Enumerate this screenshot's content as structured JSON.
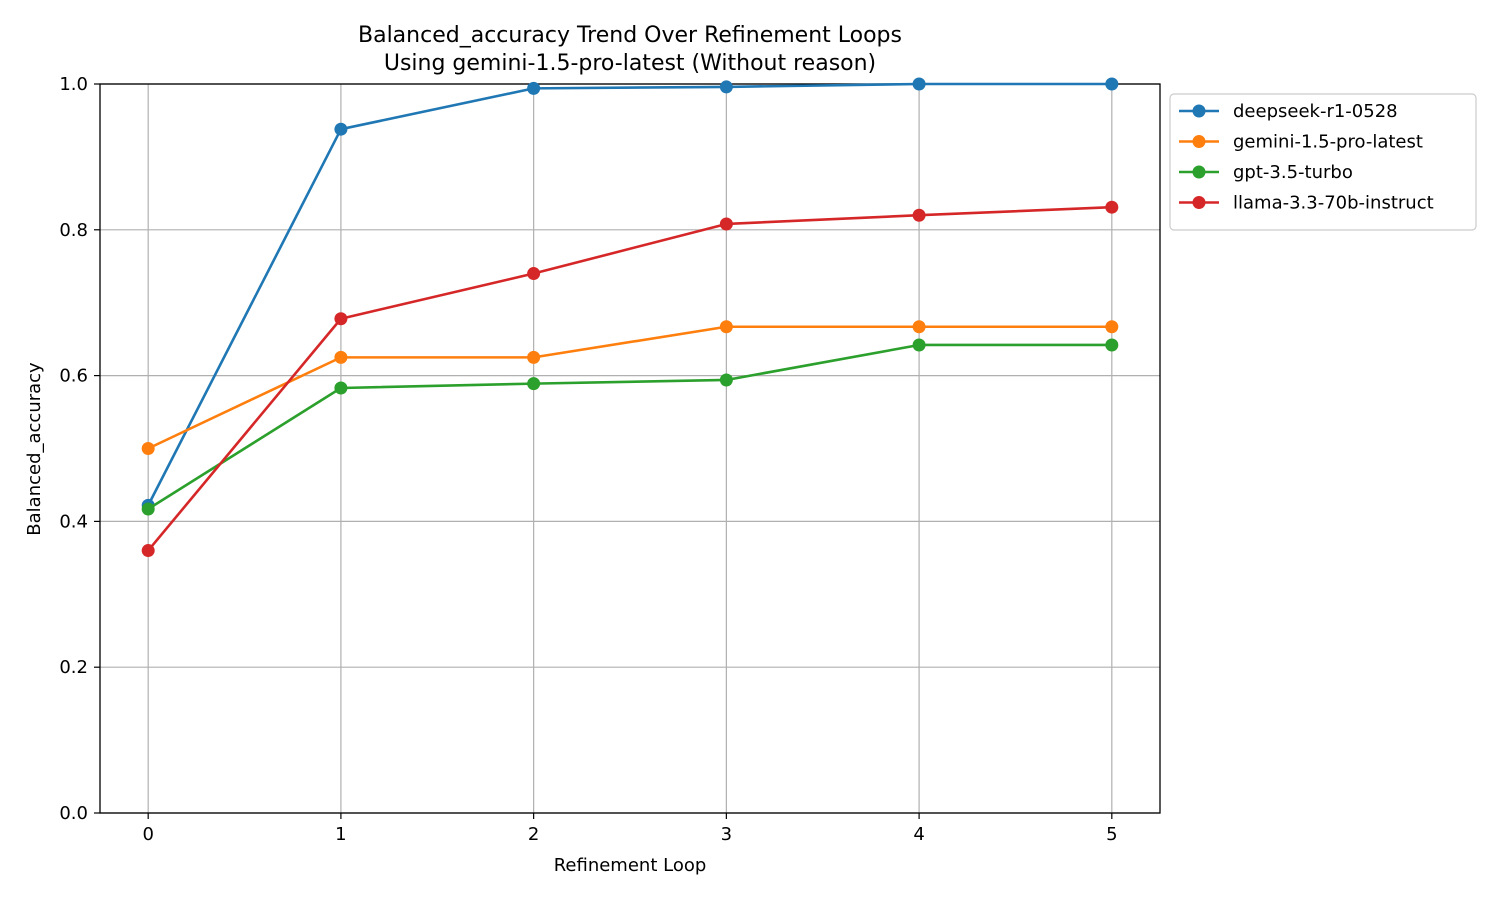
{
  "chart_data": {
    "type": "line",
    "title": "Balanced_accuracy Trend Over Refinement Loops",
    "subtitle": "Using gemini-1.5-pro-latest (Without reason)",
    "xlabel": "Refinement Loop",
    "ylabel": "Balanced_accuracy",
    "x": [
      0,
      1,
      2,
      3,
      4,
      5
    ],
    "x_ticks": [
      "0",
      "1",
      "2",
      "3",
      "4",
      "5"
    ],
    "y_ticks": [
      "0.0",
      "0.2",
      "0.4",
      "0.6",
      "0.8",
      "1.0"
    ],
    "xlim": [
      -0.25,
      5.25
    ],
    "ylim": [
      0,
      1
    ],
    "grid": true,
    "legend_position": "outside-top-right",
    "series": [
      {
        "name": "deepseek-r1-0528",
        "color": "#1f77b4",
        "values": [
          0.422,
          0.938,
          0.994,
          0.996,
          1.0,
          1.0
        ]
      },
      {
        "name": "gemini-1.5-pro-latest",
        "color": "#ff7f0e",
        "values": [
          0.5,
          0.625,
          0.625,
          0.667,
          0.667,
          0.667
        ]
      },
      {
        "name": "gpt-3.5-turbo",
        "color": "#2ca02c",
        "values": [
          0.417,
          0.583,
          0.589,
          0.594,
          0.642,
          0.642
        ]
      },
      {
        "name": "llama-3.3-70b-instruct",
        "color": "#d62728",
        "values": [
          0.36,
          0.678,
          0.74,
          0.808,
          0.82,
          0.831
        ]
      }
    ]
  }
}
